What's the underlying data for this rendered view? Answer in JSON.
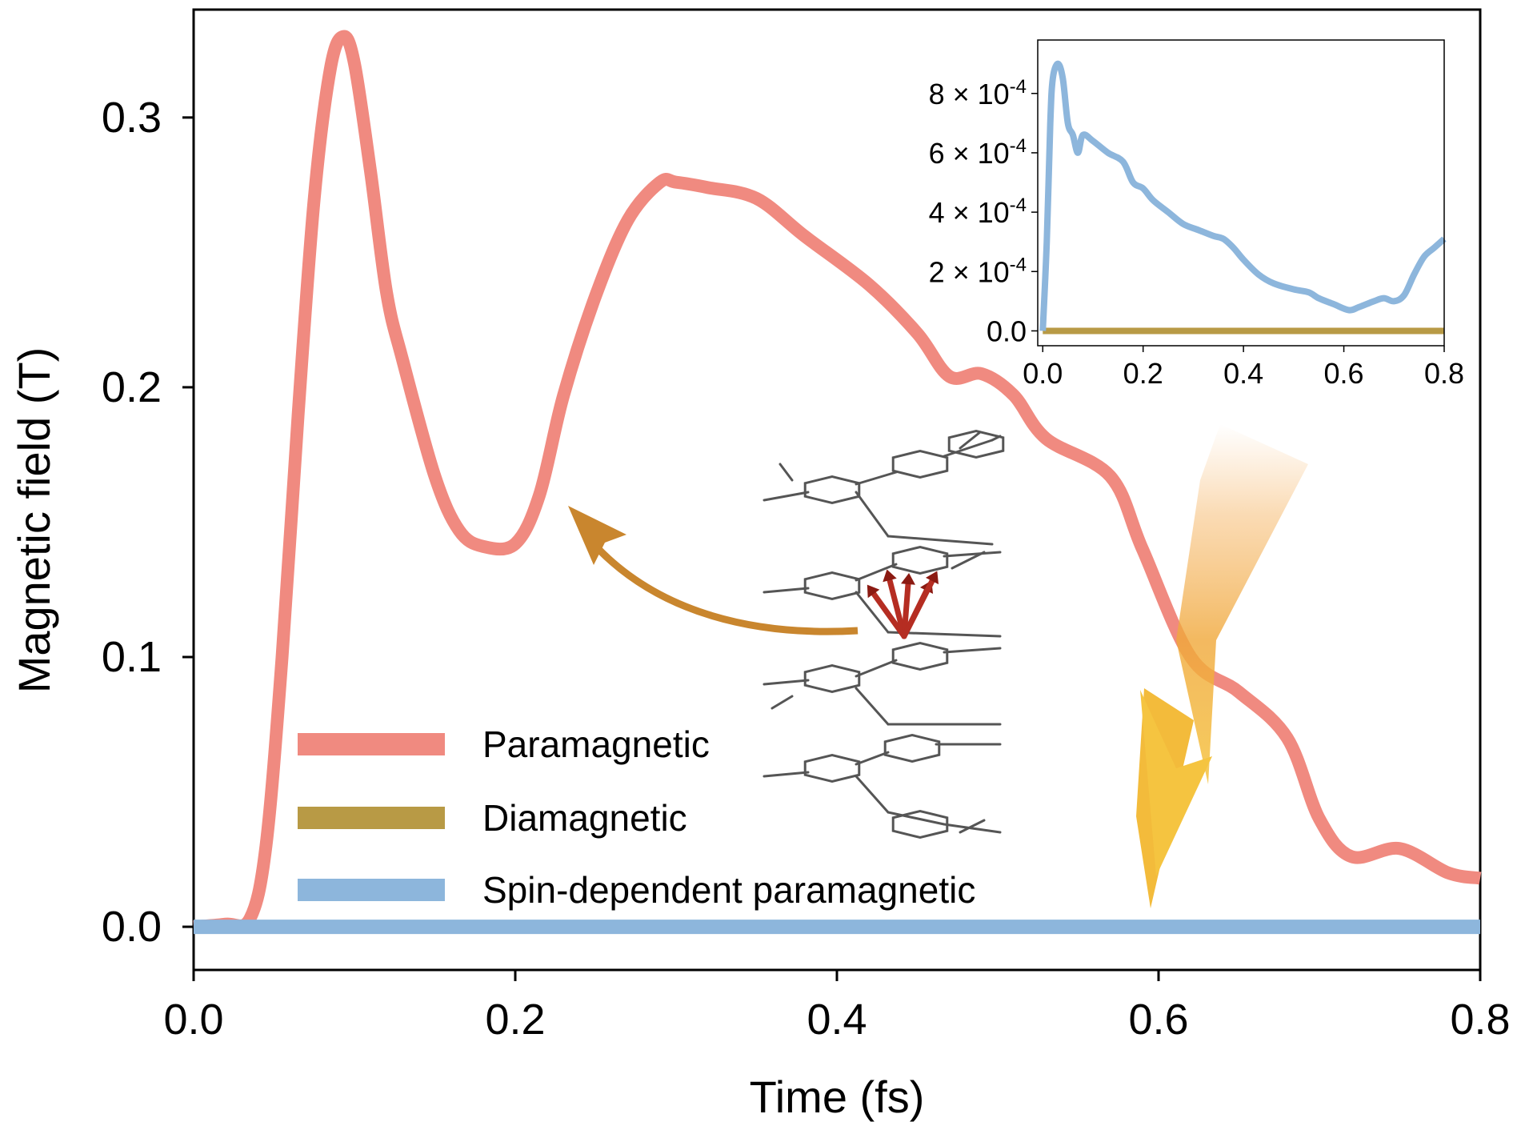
{
  "colors": {
    "paramagnetic": "#F08A80",
    "diamagnetic": "#B89A45",
    "spin_dependent": "#8DB6DC",
    "arrow": "#C9862E",
    "bolt": "#F2B134",
    "molecule": "#555555",
    "spin_arrows": "#B52D22"
  },
  "chart_data": [
    {
      "type": "line",
      "id": "main",
      "xlabel": "Time (fs)",
      "ylabel": "Magnetic field (T)",
      "xlim": [
        0.0,
        0.8
      ],
      "ylim": [
        -0.016,
        0.34
      ],
      "x_ticks": [
        0.0,
        0.2,
        0.4,
        0.6,
        0.8
      ],
      "x_tick_labels": [
        "0.0",
        "0.2",
        "0.4",
        "0.6",
        "0.8"
      ],
      "y_ticks": [
        0.0,
        0.1,
        0.2,
        0.3
      ],
      "y_tick_labels": [
        "0.0",
        "0.1",
        "0.2",
        "0.3"
      ],
      "legend_position": "lower-left",
      "series": [
        {
          "name": "Paramagnetic",
          "color_key": "paramagnetic",
          "x": [
            0.0,
            0.02,
            0.035,
            0.045,
            0.055,
            0.065,
            0.075,
            0.085,
            0.093,
            0.1,
            0.11,
            0.12,
            0.13,
            0.15,
            0.165,
            0.18,
            0.2,
            0.215,
            0.23,
            0.25,
            0.27,
            0.29,
            0.3,
            0.32,
            0.35,
            0.38,
            0.42,
            0.45,
            0.47,
            0.49,
            0.51,
            0.53,
            0.57,
            0.59,
            0.62,
            0.65,
            0.68,
            0.7,
            0.72,
            0.75,
            0.78,
            0.8
          ],
          "y": [
            0.0,
            0.001,
            0.003,
            0.03,
            0.1,
            0.19,
            0.27,
            0.318,
            0.33,
            0.32,
            0.28,
            0.235,
            0.21,
            0.167,
            0.147,
            0.141,
            0.142,
            0.16,
            0.197,
            0.234,
            0.262,
            0.276,
            0.276,
            0.274,
            0.27,
            0.256,
            0.238,
            0.22,
            0.204,
            0.205,
            0.197,
            0.181,
            0.167,
            0.14,
            0.1,
            0.087,
            0.07,
            0.04,
            0.026,
            0.029,
            0.02,
            0.018
          ]
        },
        {
          "name": "Diamagnetic",
          "color_key": "diamagnetic",
          "x": [
            0.0,
            0.8
          ],
          "y": [
            0.0,
            0.0
          ]
        },
        {
          "name": "Spin-dependent paramagnetic",
          "color_key": "spin_dependent",
          "x": [
            0.0,
            0.8
          ],
          "y": [
            0.0,
            0.0
          ]
        }
      ]
    },
    {
      "type": "line",
      "id": "inset",
      "xlabel": "",
      "ylabel": "",
      "xlim": [
        -0.01,
        0.8
      ],
      "ylim": [
        -5e-05,
        0.00098
      ],
      "x_ticks": [
        0.0,
        0.2,
        0.4,
        0.6,
        0.8
      ],
      "x_tick_labels": [
        "0.0",
        "0.2",
        "0.4",
        "0.6",
        "0.8"
      ],
      "y_ticks": [
        0.0,
        0.0002,
        0.0004,
        0.0006,
        0.0008
      ],
      "y_tick_labels": [
        {
          "mantissa": "0.0",
          "exp": ""
        },
        {
          "mantissa": "2 × 10",
          "exp": "-4"
        },
        {
          "mantissa": "4 × 10",
          "exp": "-4"
        },
        {
          "mantissa": "6 × 10",
          "exp": "-4"
        },
        {
          "mantissa": "8 × 10",
          "exp": "-4"
        }
      ],
      "series": [
        {
          "name": "Spin-dependent paramagnetic",
          "color_key": "spin_dependent",
          "x": [
            0.0,
            0.008,
            0.015,
            0.02,
            0.03,
            0.04,
            0.05,
            0.06,
            0.07,
            0.08,
            0.1,
            0.13,
            0.16,
            0.18,
            0.2,
            0.22,
            0.25,
            0.28,
            0.31,
            0.34,
            0.36,
            0.38,
            0.4,
            0.43,
            0.46,
            0.5,
            0.53,
            0.55,
            0.58,
            0.61,
            0.63,
            0.66,
            0.68,
            0.7,
            0.72,
            0.74,
            0.76,
            0.78,
            0.8
          ],
          "y": [
            0.0,
            0.0003,
            0.0007,
            0.00085,
            0.0009,
            0.00085,
            0.0007,
            0.00066,
            0.0006,
            0.00066,
            0.00064,
            0.0006,
            0.00057,
            0.0005,
            0.00048,
            0.00044,
            0.0004,
            0.00036,
            0.00034,
            0.00032,
            0.00031,
            0.00028,
            0.00024,
            0.00019,
            0.00016,
            0.00014,
            0.00013,
            0.00011,
            9e-05,
            7e-05,
            8e-05,
            0.0001,
            0.00011,
            0.0001,
            0.00012,
            0.00019,
            0.00025,
            0.00028,
            0.00031
          ]
        },
        {
          "name": "Diamagnetic",
          "color_key": "diamagnetic",
          "x": [
            0.0,
            0.8
          ],
          "y": [
            0.0,
            0.0
          ]
        }
      ]
    }
  ]
}
